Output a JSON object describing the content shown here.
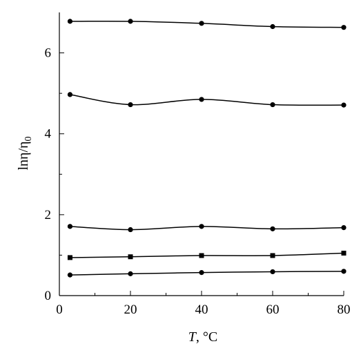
{
  "chart_data": {
    "type": "line",
    "title": "",
    "xlabel_italic": "T",
    "xlabel_rest": ", °C",
    "ylabel_main": "lnη/η",
    "ylabel_sub": "0",
    "xlim": [
      0,
      80
    ],
    "ylim": [
      0,
      7
    ],
    "xticks": [
      0,
      20,
      40,
      60,
      80
    ],
    "yticks": [
      0,
      2,
      4,
      6
    ],
    "x": [
      3,
      20,
      40,
      60,
      80
    ],
    "grid": false,
    "series": [
      {
        "values": [
          6.78,
          6.78,
          6.73,
          6.65,
          6.63
        ],
        "marker": "circle"
      },
      {
        "values": [
          4.97,
          4.72,
          4.85,
          4.72,
          4.71
        ],
        "marker": "circle"
      },
      {
        "values": [
          1.71,
          1.63,
          1.71,
          1.65,
          1.68
        ],
        "marker": "circle"
      },
      {
        "values": [
          0.94,
          0.96,
          0.99,
          0.99,
          1.05
        ],
        "marker": "square"
      },
      {
        "values": [
          0.51,
          0.54,
          0.57,
          0.59,
          0.6
        ],
        "marker": "circle"
      }
    ],
    "colors": {
      "line": "#000000",
      "marker": "#000000"
    }
  }
}
